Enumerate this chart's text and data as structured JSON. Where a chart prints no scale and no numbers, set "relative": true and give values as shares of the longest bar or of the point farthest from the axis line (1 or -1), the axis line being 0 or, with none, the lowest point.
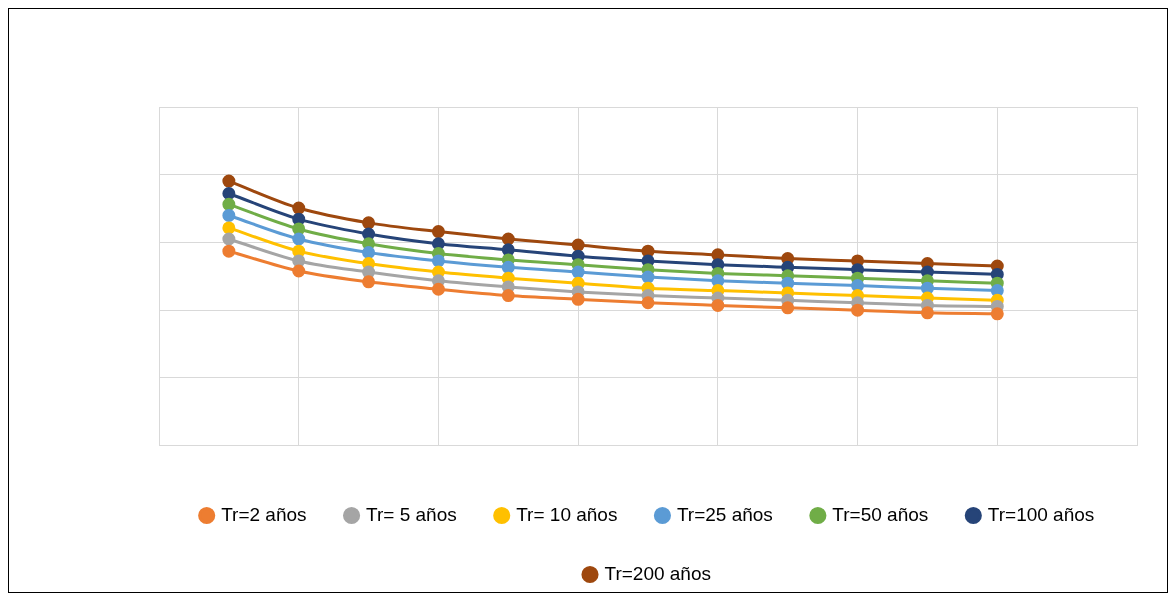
{
  "chart_data": {
    "type": "line",
    "relative": true,
    "grid": true,
    "legend": "bottom",
    "marker": "circle",
    "line_style": "solid",
    "categories": [
      null,
      null,
      null,
      null,
      null,
      null,
      null,
      null,
      null,
      null,
      null,
      null,
      null,
      null,
      null
    ],
    "series": [
      {
        "name": "Tr=2 años",
        "color": "#ed7d31",
        "values": [
          null,
          0.735,
          0.66,
          0.619,
          0.591,
          0.567,
          0.553,
          0.54,
          0.53,
          0.521,
          0.512,
          0.502,
          0.498,
          null,
          null
        ]
      },
      {
        "name": "Tr= 5 años",
        "color": "#a5a5a5",
        "values": [
          null,
          0.781,
          0.698,
          0.656,
          0.623,
          0.6,
          0.581,
          0.567,
          0.558,
          0.549,
          0.54,
          0.53,
          0.526,
          null,
          null
        ]
      },
      {
        "name": "Tr= 10 años",
        "color": "#ffc000",
        "values": [
          null,
          0.823,
          0.735,
          0.688,
          0.656,
          0.633,
          0.614,
          0.595,
          0.586,
          0.577,
          0.567,
          0.558,
          0.549,
          null,
          null
        ]
      },
      {
        "name": "Tr=25 años",
        "color": "#5b9bd5",
        "values": [
          null,
          0.87,
          0.781,
          0.73,
          0.698,
          0.674,
          0.656,
          0.637,
          0.623,
          0.614,
          0.605,
          0.595,
          0.586,
          null,
          null
        ]
      },
      {
        "name": "Tr=50 años",
        "color": "#70ad47",
        "values": [
          null,
          0.912,
          0.819,
          0.763,
          0.726,
          0.702,
          0.684,
          0.665,
          0.651,
          0.642,
          0.633,
          0.623,
          0.614,
          null,
          null
        ]
      },
      {
        "name": "Tr=100 años",
        "color": "#264478",
        "values": [
          null,
          0.953,
          0.856,
          0.8,
          0.763,
          0.74,
          0.716,
          0.698,
          0.684,
          0.674,
          0.665,
          0.656,
          0.647,
          null,
          null
        ]
      },
      {
        "name": "Tr=200 años",
        "color": "#9e480e",
        "values": [
          null,
          1,
          0.898,
          0.842,
          0.809,
          0.781,
          0.758,
          0.735,
          0.721,
          0.707,
          0.698,
          0.688,
          0.679,
          null,
          null
        ]
      }
    ]
  }
}
